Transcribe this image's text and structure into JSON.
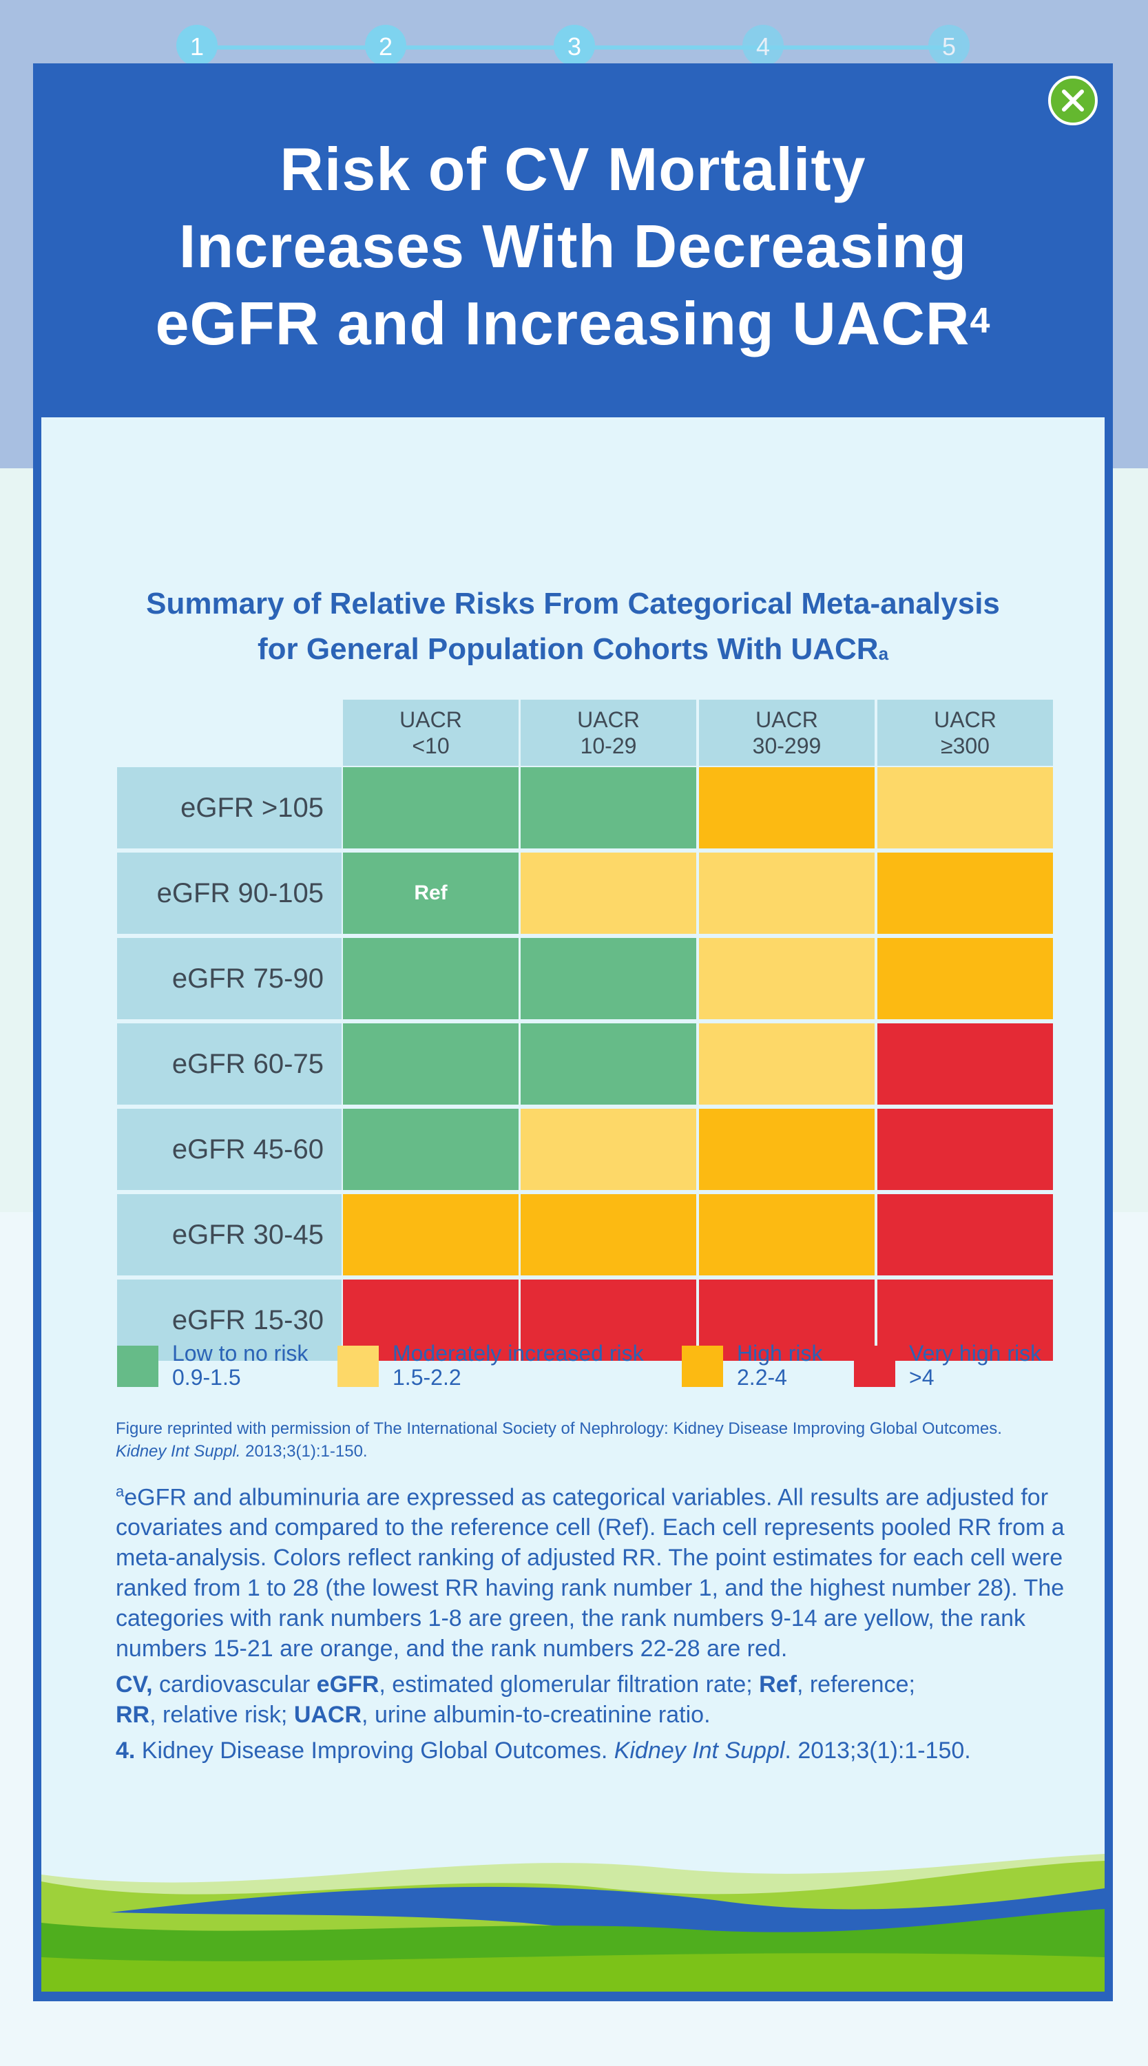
{
  "stepper": {
    "steps": [
      "1",
      "2",
      "3",
      "4",
      "5"
    ],
    "active_step": 3
  },
  "header": {
    "title_lines": [
      "Risk of CV Mortality",
      "Increases With Decreasing",
      "eGFR and Increasing UACR"
    ],
    "title_superscript": "4"
  },
  "figure": {
    "subtitle_line1": "Summary of Relative Risks From Categorical Meta-analysis",
    "subtitle_line2": "for General Population Cohorts With UACR",
    "subtitle_superscript": "a"
  },
  "chart_data": {
    "type": "heatmap",
    "title": "Summary of Relative Risks From Categorical Meta-analysis for General Population Cohorts With UACR",
    "columns": [
      {
        "line1": "UACR",
        "line2": "<10"
      },
      {
        "line1": "UACR",
        "line2": "10-29"
      },
      {
        "line1": "UACR",
        "line2": "30-299"
      },
      {
        "line1": "UACR",
        "line2": "≥300"
      }
    ],
    "rows": [
      "eGFR >105",
      "eGFR 90-105",
      "eGFR 75-90",
      "eGFR 60-75",
      "eGFR 45-60",
      "eGFR 30-45",
      "eGFR 15-30"
    ],
    "cells": [
      [
        "low",
        "low",
        "high",
        "moderate"
      ],
      [
        "low",
        "moderate",
        "moderate",
        "high"
      ],
      [
        "low",
        "low",
        "moderate",
        "high"
      ],
      [
        "low",
        "low",
        "moderate",
        "very_high"
      ],
      [
        "low",
        "moderate",
        "high",
        "very_high"
      ],
      [
        "high",
        "high",
        "high",
        "very_high"
      ],
      [
        "very_high",
        "very_high",
        "very_high",
        "very_high"
      ]
    ],
    "reference_cell": {
      "row": 1,
      "col": 0,
      "label": "Ref"
    },
    "legend": [
      {
        "key": "low",
        "label": "Low to no risk",
        "range": "0.9-1.5",
        "color": "#66bb88"
      },
      {
        "key": "moderate",
        "label": "Moderately increased risk",
        "range": "1.5-2.2",
        "color": "#fdd868"
      },
      {
        "key": "high",
        "label": "High risk",
        "range": "2.2-4",
        "color": "#fcba12"
      },
      {
        "key": "very_high",
        "label": "Very high risk",
        "range": ">4",
        "color": "#e42a35"
      }
    ]
  },
  "footnotes": {
    "permission_line1": "Figure reprinted with permission of The International Society of Nephrology: Kidney Disease Improving Global Outcomes.",
    "permission_journal": "Kidney Int Suppl.",
    "permission_citation": " 2013;3(1):1-150.",
    "note_a_marker": "a",
    "note_a": "eGFR and albuminuria are expressed as categorical variables. All results are adjusted for covariates and compared to the reference cell (Ref). Each cell represents pooled RR from a meta-analysis. Colors reflect ranking of adjusted RR. The point estimates for each cell were ranked from 1 to 28 (the lowest RR having rank number 1, and the highest number 28). The categories with rank numbers 1-8 are green, the rank numbers 9-14 are yellow, the rank numbers 15-21 are orange, and the rank numbers 22-28 are red.",
    "abbr": [
      {
        "term": "CV,",
        "def": " cardiovascular "
      },
      {
        "term": "eGFR",
        "def": ", estimated glomerular filtration rate; "
      },
      {
        "term": "Ref",
        "def": ", reference; "
      },
      {
        "term": "RR",
        "def": ", relative risk; "
      },
      {
        "term": "UACR",
        "def": ", urine albumin-to-creatinine ratio."
      }
    ],
    "ref_number": "4.",
    "ref_text": " Kidney Disease Improving Global Outcomes. ",
    "ref_journal": "Kidney Int Suppl",
    "ref_citation": ". 2013;3(1):1-150."
  },
  "colors": {
    "header_blue": "#2a63bc",
    "close_green": "#64b82f",
    "text_blue": "#2b63b6",
    "step_color": "#7ed3ef"
  },
  "icons": {
    "close": "close-icon"
  }
}
